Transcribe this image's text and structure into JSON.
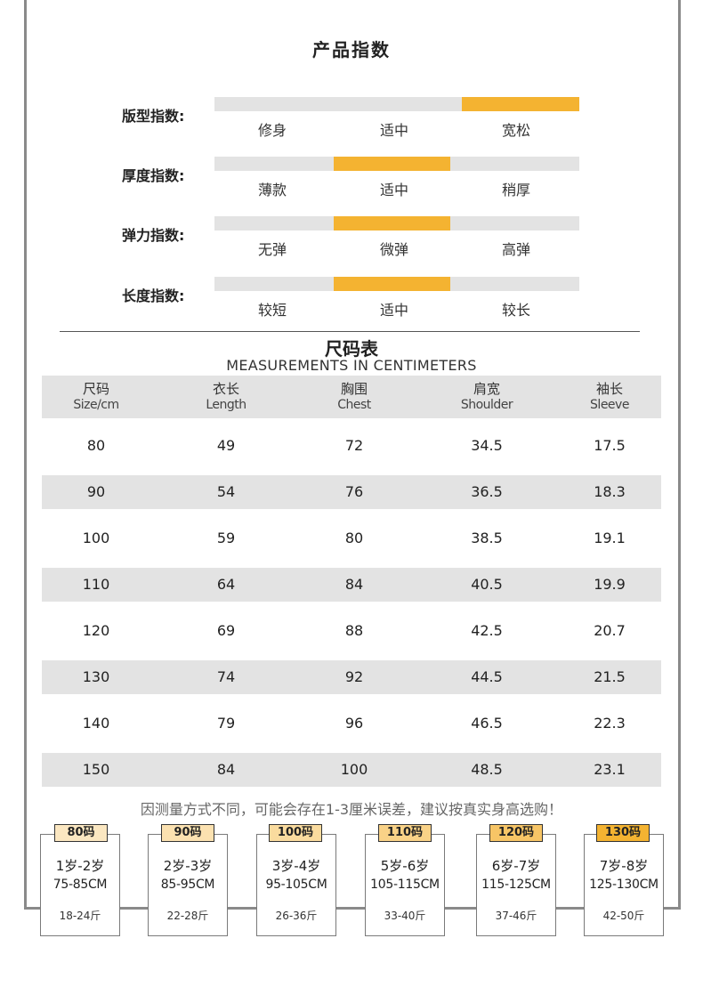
{
  "index": {
    "title": "产品指数",
    "rows": [
      {
        "label": "版型指数:",
        "options": [
          "修身",
          "适中",
          "宽松"
        ],
        "selected": 2
      },
      {
        "label": "厚度指数:",
        "options": [
          "薄款",
          "适中",
          "稍厚"
        ],
        "selected": 1
      },
      {
        "label": "弹力指数:",
        "options": [
          "无弹",
          "微弹",
          "高弹"
        ],
        "selected": 1
      },
      {
        "label": "长度指数:",
        "options": [
          "较短",
          "适中",
          "较长"
        ],
        "selected": 1
      }
    ],
    "colors": {
      "selected": "#f4b331",
      "track": "#e3e3e3"
    }
  },
  "size_table": {
    "title": "尺码表",
    "subtitle": "MEASUREMENTS IN CENTIMETERS",
    "headers": [
      {
        "cn": "尺码",
        "en": "Size/cm"
      },
      {
        "cn": "衣长",
        "en": "Length"
      },
      {
        "cn": "胸围",
        "en": "Chest"
      },
      {
        "cn": "肩宽",
        "en": "Shoulder"
      },
      {
        "cn": "袖长",
        "en": "Sleeve"
      }
    ],
    "rows": [
      [
        "80",
        "49",
        "72",
        "34.5",
        "17.5"
      ],
      [
        "90",
        "54",
        "76",
        "36.5",
        "18.3"
      ],
      [
        "100",
        "59",
        "80",
        "38.5",
        "19.1"
      ],
      [
        "110",
        "64",
        "84",
        "40.5",
        "19.9"
      ],
      [
        "120",
        "69",
        "88",
        "42.5",
        "20.7"
      ],
      [
        "130",
        "74",
        "92",
        "44.5",
        "21.5"
      ],
      [
        "140",
        "79",
        "96",
        "46.5",
        "22.3"
      ],
      [
        "150",
        "84",
        "100",
        "48.5",
        "23.1"
      ]
    ],
    "note": "因测量方式不同，可能会存在1-3厘米误差，建议按真实身高选购！"
  },
  "size_cards": [
    {
      "tag": "80码",
      "age": "1岁-2岁",
      "height": "75-85CM",
      "weight": "18-24斤",
      "tag_color": "#fbe7c1"
    },
    {
      "tag": "90码",
      "age": "2岁-3岁",
      "height": "85-95CM",
      "weight": "22-28斤",
      "tag_color": "#fbe1b0"
    },
    {
      "tag": "100码",
      "age": "3岁-4岁",
      "height": "95-105CM",
      "weight": "26-36斤",
      "tag_color": "#fadb9e"
    },
    {
      "tag": "110码",
      "age": "5岁-6岁",
      "height": "105-115CM",
      "weight": "33-40斤",
      "tag_color": "#f9d287"
    },
    {
      "tag": "120码",
      "age": "6岁-7岁",
      "height": "115-125CM",
      "weight": "37-46斤",
      "tag_color": "#f7c566"
    },
    {
      "tag": "130码",
      "age": "7岁-8岁",
      "height": "125-130CM",
      "weight": "42-50斤",
      "tag_color": "#f4b331"
    }
  ]
}
